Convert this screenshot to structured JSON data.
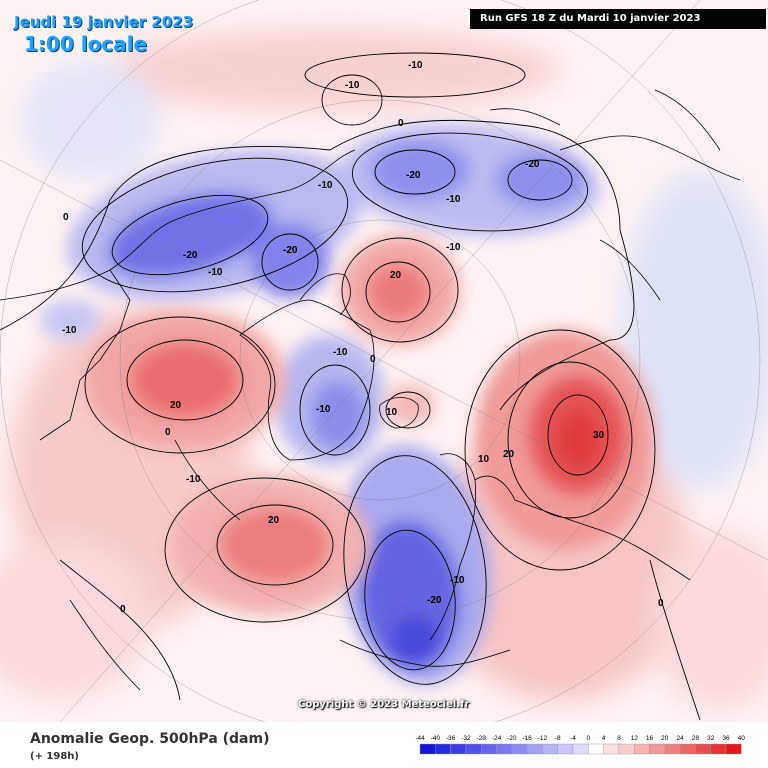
{
  "header": {
    "date": "Jeudi 19 janvier 2023",
    "local_time": "1:00 locale",
    "run_info": "Run GFS 18 Z du Mardi 10 janvier 2023"
  },
  "footer": {
    "title": "Anomalie Geop. 500hPa (dam)",
    "forecast_hour": "(+ 198h)",
    "copyright": "Copyright © 2023 Meteociel.fr"
  },
  "legend": {
    "ticks": [
      "-44",
      "-40",
      "-36",
      "-32",
      "-28",
      "-24",
      "-20",
      "-16",
      "-12",
      "-8",
      "-4",
      "0",
      "4",
      "8",
      "12",
      "16",
      "20",
      "24",
      "28",
      "32",
      "36",
      "40"
    ],
    "colors": [
      "#1515d8",
      "#2a2ae0",
      "#3d3de6",
      "#5050ea",
      "#6464ee",
      "#7878f0",
      "#8c8cf2",
      "#a0a0f4",
      "#b4b4f6",
      "#c8c8f8",
      "#dcdcfa",
      "#ffffff",
      "#fbe0e0",
      "#f8cccc",
      "#f5b3b3",
      "#f29999",
      "#ef8080",
      "#ec6666",
      "#e84d4d",
      "#e43333",
      "#e01a1a"
    ]
  },
  "contour_labels": [
    {
      "text": "-10"
    },
    {
      "text": "-10"
    },
    {
      "text": "0"
    },
    {
      "text": "-20"
    },
    {
      "text": "-20"
    },
    {
      "text": "-10"
    },
    {
      "text": "-10"
    },
    {
      "text": "-10"
    },
    {
      "text": "-20"
    },
    {
      "text": "-20"
    },
    {
      "text": "-10"
    },
    {
      "text": "-10"
    },
    {
      "text": "20"
    },
    {
      "text": "-10"
    },
    {
      "text": "0"
    },
    {
      "text": "20"
    },
    {
      "text": "-10"
    },
    {
      "text": "0"
    },
    {
      "text": "-10"
    },
    {
      "text": "10"
    },
    {
      "text": "30"
    },
    {
      "text": "20"
    },
    {
      "text": "10"
    },
    {
      "text": "20"
    },
    {
      "text": "-10"
    },
    {
      "text": "-20"
    },
    {
      "text": "0"
    },
    {
      "text": "0"
    },
    {
      "text": "0"
    }
  ]
}
